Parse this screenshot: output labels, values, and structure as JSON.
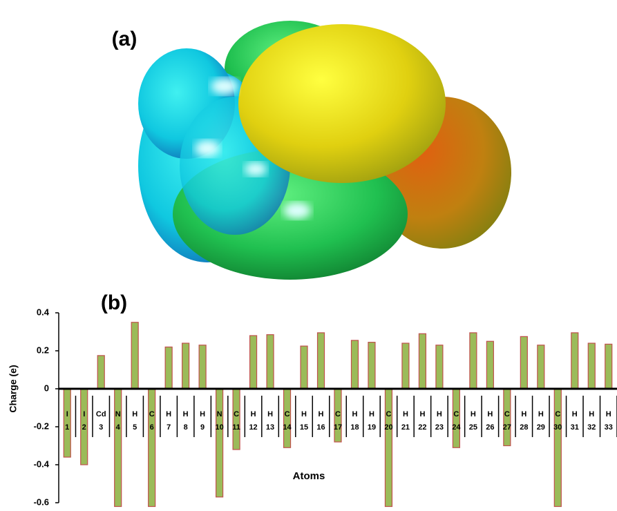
{
  "panel_a": {
    "label": "(a)"
  },
  "chart_data": {
    "type": "bar",
    "title": "(b)",
    "y_label": "Charge (e)",
    "x_label": "Atoms",
    "categories": [
      "1",
      "2",
      "3",
      "4",
      "5",
      "6",
      "7",
      "8",
      "9",
      "10",
      "11",
      "12",
      "13",
      "14",
      "15",
      "16",
      "17",
      "18",
      "19",
      "20",
      "21",
      "22",
      "23",
      "24",
      "25",
      "26",
      "27",
      "28",
      "29",
      "30",
      "31",
      "32",
      "33"
    ],
    "elements": [
      "I",
      "I",
      "Cd",
      "N",
      "H",
      "C",
      "H",
      "H",
      "H",
      "N",
      "C",
      "H",
      "H",
      "C",
      "H",
      "H",
      "C",
      "H",
      "H",
      "C",
      "H",
      "H",
      "H",
      "C",
      "H",
      "H",
      "C",
      "H",
      "H",
      "C",
      "H",
      "H",
      "H"
    ],
    "values": [
      -0.36,
      -0.4,
      0.175,
      -0.62,
      0.35,
      -0.62,
      0.22,
      0.24,
      0.23,
      -0.57,
      -0.32,
      0.28,
      0.285,
      -0.31,
      0.225,
      0.295,
      -0.28,
      0.255,
      0.245,
      -0.62,
      0.24,
      0.29,
      0.23,
      -0.31,
      0.295,
      0.25,
      -0.3,
      0.275,
      0.23,
      -0.62,
      0.295,
      0.24,
      0.235
    ],
    "color": "#9bbb59",
    "edge_color": "#c0504d",
    "ylim": [
      -0.6,
      0.4
    ],
    "yticks": [
      0.4,
      0.2,
      0,
      -0.2,
      -0.4,
      -0.6
    ]
  }
}
